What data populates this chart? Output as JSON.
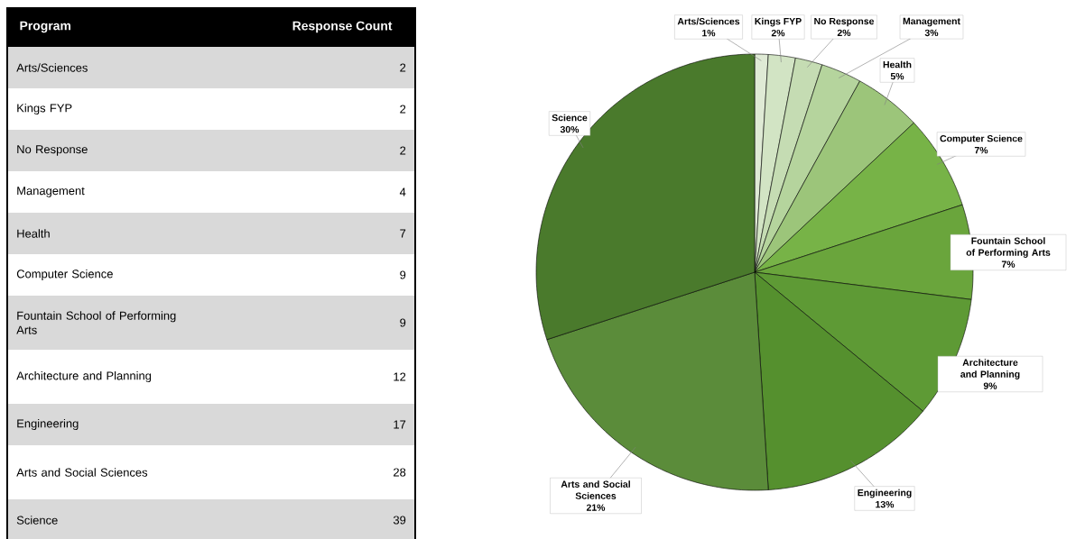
{
  "chart_data": [
    {
      "type": "other",
      "xlabel": "Program",
      "ylabel": "Response Count",
      "categories": [
        "Arts/Sciences",
        "Kings FYP",
        "No Response",
        "Management",
        "Health",
        "Computer Science",
        "Fountain School of Performing Arts",
        "Architecture and Planning",
        "Engineering",
        "Arts and Social Sciences",
        "Science"
      ],
      "values": [
        2,
        2,
        2,
        4,
        7,
        9,
        9,
        12,
        17,
        28,
        39
      ],
      "data_labels": true
    },
    {
      "type": "pie",
      "categories": [
        "Arts/Sciences",
        "Kings FYP",
        "No Response",
        "Management",
        "Health",
        "Computer Science",
        "Fountain School of Performing Arts",
        "Architecture and Planning",
        "Engineering",
        "Arts and Social Sciences",
        "Science"
      ],
      "values": [
        1,
        2,
        2,
        3,
        5,
        7,
        7,
        9,
        13,
        21,
        30
      ],
      "value_labels": [
        "1%",
        "2%",
        "2%",
        "3%",
        "5%",
        "7%",
        "7%",
        "9%",
        "13%",
        "21%",
        "30%"
      ],
      "colors": [
        "#dfead5",
        "#d2e4c4",
        "#c5dcb3",
        "#b5d49d",
        "#9cc57a",
        "#77b347",
        "#6aa53c",
        "#5e9a35",
        "#55902e",
        "#5b8c3a",
        "#4a7a2c"
      ]
    }
  ]
}
